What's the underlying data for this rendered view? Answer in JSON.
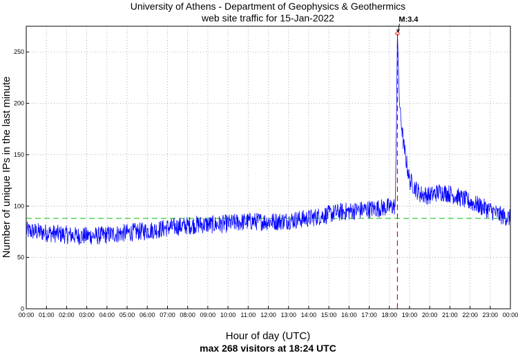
{
  "chart_data": {
    "type": "line",
    "title": "University of Athens - Department of Geophysics & Geothermics",
    "subtitle": "web site traffic for 15-Jan-2022",
    "xlabel": "Hour of day (UTC)",
    "ylabel": "Number of unique IPs in the last minute",
    "footer": "max 268 visitors at 18:24 UTC",
    "xlim": [
      0,
      24
    ],
    "ylim": [
      0,
      275
    ],
    "x_ticks": [
      "00:00",
      "01:00",
      "02:00",
      "03:00",
      "04:00",
      "05:00",
      "06:00",
      "07:00",
      "08:00",
      "09:00",
      "10:00",
      "11:00",
      "12:00",
      "13:00",
      "14:00",
      "15:00",
      "16:00",
      "17:00",
      "18:00",
      "19:00",
      "20:00",
      "21:00",
      "22:00",
      "23:00",
      "00:00"
    ],
    "y_ticks": [
      0,
      50,
      100,
      150,
      200,
      250
    ],
    "grid": true,
    "series_color": "#0000ff",
    "mean_line": {
      "value": 88,
      "color": "#33cc33"
    },
    "event_line": {
      "x": 18.4,
      "color": "#dd0000"
    },
    "annotation": {
      "label": "M:3.4",
      "x": 18.4,
      "y": 268
    },
    "trend_points": [
      [
        0.0,
        76
      ],
      [
        0.5,
        75
      ],
      [
        1.0,
        74
      ],
      [
        1.5,
        73
      ],
      [
        2.0,
        72
      ],
      [
        2.5,
        71
      ],
      [
        3.0,
        71
      ],
      [
        3.5,
        71
      ],
      [
        4.0,
        72
      ],
      [
        4.5,
        73
      ],
      [
        5.0,
        74
      ],
      [
        5.5,
        75
      ],
      [
        6.0,
        76
      ],
      [
        6.5,
        77
      ],
      [
        7.0,
        79
      ],
      [
        7.5,
        80
      ],
      [
        8.0,
        81
      ],
      [
        8.5,
        82
      ],
      [
        9.0,
        82
      ],
      [
        9.5,
        82
      ],
      [
        10.0,
        83
      ],
      [
        10.5,
        84
      ],
      [
        11.0,
        85
      ],
      [
        11.5,
        85
      ],
      [
        12.0,
        85
      ],
      [
        12.5,
        85
      ],
      [
        13.0,
        86
      ],
      [
        13.5,
        87
      ],
      [
        14.0,
        88
      ],
      [
        14.5,
        90
      ],
      [
        15.0,
        92
      ],
      [
        15.5,
        94
      ],
      [
        16.0,
        95
      ],
      [
        16.5,
        96
      ],
      [
        17.0,
        97
      ],
      [
        17.5,
        98
      ],
      [
        18.0,
        99
      ],
      [
        18.3,
        100
      ],
      [
        18.4,
        268
      ],
      [
        18.5,
        200
      ],
      [
        18.7,
        160
      ],
      [
        19.0,
        125
      ],
      [
        19.5,
        112
      ],
      [
        20.0,
        110
      ],
      [
        20.5,
        114
      ],
      [
        21.0,
        112
      ],
      [
        21.5,
        108
      ],
      [
        22.0,
        104
      ],
      [
        22.5,
        100
      ],
      [
        23.0,
        96
      ],
      [
        23.5,
        91
      ],
      [
        24.0,
        88
      ]
    ],
    "noise_amplitude": 9
  }
}
